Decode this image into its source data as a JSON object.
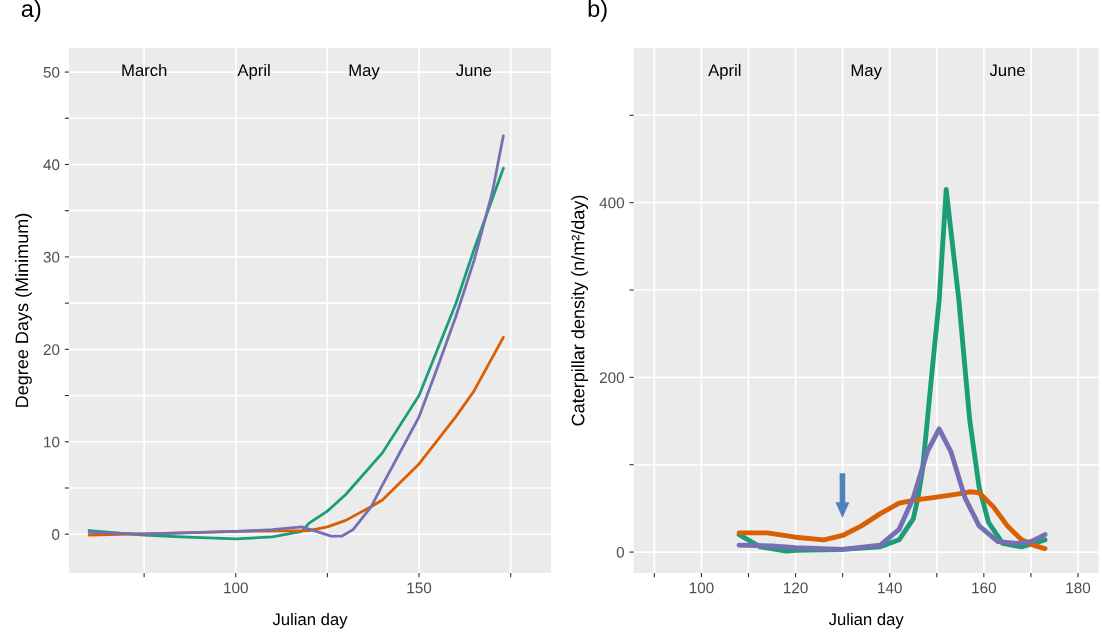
{
  "chart_data": [
    {
      "type": "line",
      "title": "a)",
      "xlabel": "Julian day",
      "ylabel": "Degree Days (Minimum)",
      "xlim": [
        54.5,
        186
      ],
      "ylim": [
        -4.2,
        52.6
      ],
      "xticks": [
        {
          "value": 75,
          "label": null
        },
        100,
        {
          "value": 125,
          "label": null
        },
        150,
        {
          "value": 175,
          "label": null
        }
      ],
      "yticks": [
        0,
        {
          "value": 5,
          "label": null
        },
        10,
        {
          "value": 15,
          "label": null
        },
        20,
        {
          "value": 25,
          "label": null
        },
        30,
        {
          "value": 35,
          "label": null
        },
        40,
        {
          "value": 45,
          "label": null
        },
        50
      ],
      "grid": true,
      "legend": false,
      "annotations": [
        "March",
        "April",
        "May",
        "June"
      ],
      "series": [
        {
          "color": "#1b9e77",
          "x": [
            60,
            75,
            85,
            100,
            110,
            118,
            120,
            125,
            130,
            140,
            150,
            160,
            165,
            173
          ],
          "values": [
            0.4,
            -0.1,
            -0.3,
            -0.5,
            -0.3,
            0.3,
            1.2,
            2.5,
            4.3,
            8.8,
            15,
            24.9,
            30.8,
            39.6
          ]
        },
        {
          "color": "#d95f02",
          "x": [
            60,
            80,
            100,
            120,
            125,
            130,
            137,
            140,
            150,
            160,
            165,
            173
          ],
          "values": [
            -0.1,
            0.1,
            0.3,
            0.4,
            0.8,
            1.5,
            3,
            3.7,
            7.6,
            12.7,
            15.5,
            21.3
          ]
        },
        {
          "color": "#7570b3",
          "x": [
            60,
            75,
            100,
            110,
            118,
            122,
            126,
            129,
            132,
            137,
            140,
            145,
            150,
            155,
            160,
            165,
            170,
            173
          ],
          "values": [
            0.2,
            0,
            0.3,
            0.5,
            0.8,
            0.3,
            -0.2,
            -0.2,
            0.5,
            3,
            5.3,
            9,
            12.7,
            18,
            23.5,
            29.6,
            37,
            43.1
          ]
        }
      ]
    },
    {
      "type": "line",
      "title": "b)",
      "xlabel": "Julian day",
      "ylabel": "Caterpillar density (n/m²/day)",
      "xlim": [
        85.6,
        184.4
      ],
      "ylim": [
        -24,
        577
      ],
      "xticks": [
        {
          "value": 90,
          "label": null
        },
        100,
        {
          "value": 110,
          "label": null
        },
        120,
        {
          "value": 130,
          "label": null
        },
        140,
        {
          "value": 150,
          "label": null
        },
        160,
        {
          "value": 170,
          "label": null
        },
        180
      ],
      "yticks": [
        0,
        {
          "value": 100,
          "label": null
        },
        200,
        {
          "value": 300,
          "label": null
        },
        400,
        {
          "value": 500,
          "label": null
        }
      ],
      "grid": true,
      "legend": false,
      "annotations": [
        "April",
        "May",
        "June"
      ],
      "series": [
        {
          "color": "#1b9e77",
          "x": [
            108,
            112.5,
            118,
            120,
            130,
            138,
            142,
            145,
            146,
            147,
            149,
            150.5,
            152,
            154.7,
            157,
            159,
            161,
            164,
            168,
            173
          ],
          "values": [
            20,
            6,
            1,
            2,
            3,
            6,
            14,
            38,
            62,
            95,
            207,
            288,
            415,
            288,
            151,
            74,
            34,
            10,
            6,
            14
          ]
        },
        {
          "color": "#d95f02",
          "x": [
            108,
            114,
            120,
            126,
            130,
            134,
            138,
            142,
            146,
            150,
            154,
            157,
            159,
            162,
            165,
            168,
            171,
            173
          ],
          "values": [
            22,
            22,
            17,
            14,
            19,
            30,
            44,
            56,
            60,
            63,
            66,
            69,
            68,
            52,
            30,
            14,
            7,
            4
          ]
        },
        {
          "color": "#7570b3",
          "x": [
            108,
            115,
            120,
            130,
            138,
            142,
            145,
            148,
            150.5,
            153,
            156,
            159,
            163,
            167,
            170,
            173
          ],
          "values": [
            8,
            7,
            5,
            3,
            8,
            26,
            62,
            115,
            141,
            115,
            62,
            30,
            12,
            10,
            12,
            20
          ]
        }
      ]
    }
  ]
}
